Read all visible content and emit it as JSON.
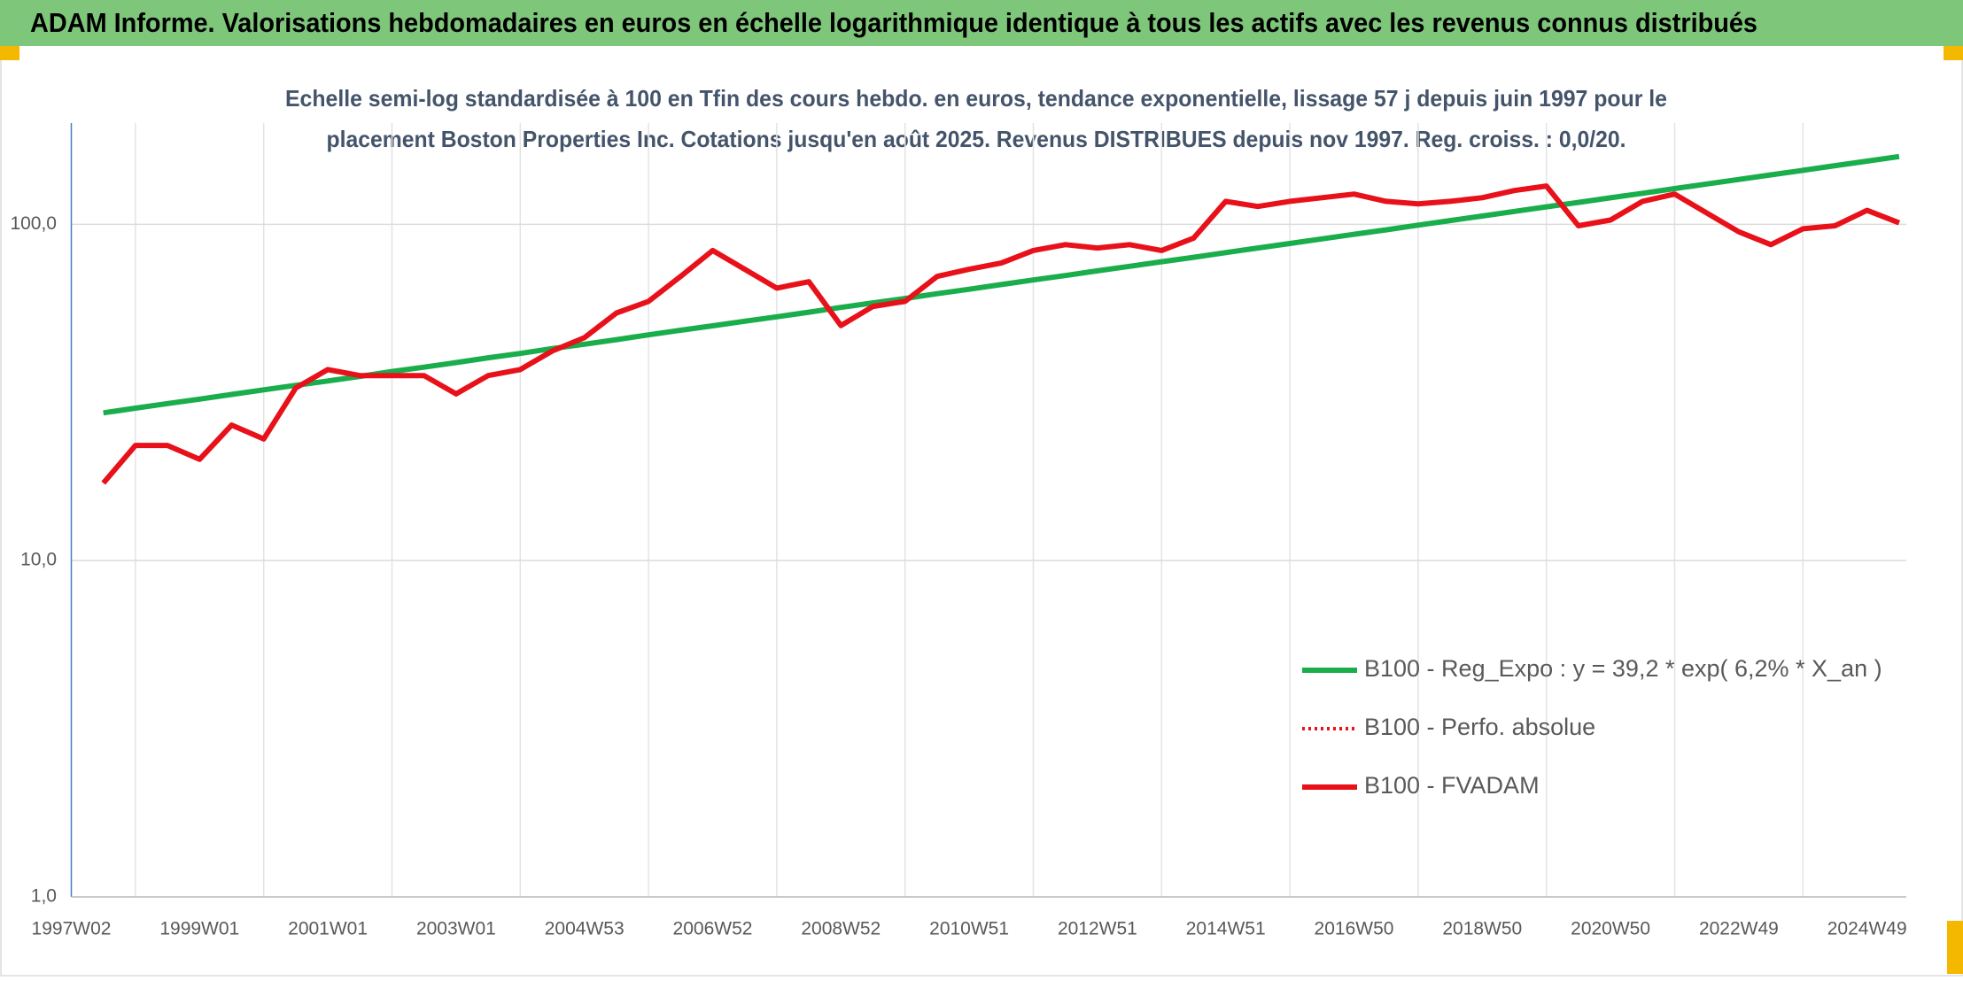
{
  "chart_data": {
    "type": "line",
    "title": "ADAM Informe. Valorisations hebdomadaires en euros en échelle logarithmique identique à tous les actifs avec les revenus connus distribués",
    "subtitle": [
      "Echelle semi-log standardisée à 100 en Tfin des cours hebdo. en euros, tendance exponentielle, lissage 57 j depuis juin 1997 pour le",
      "placement Boston Properties Inc. Cotations jusqu'en août 2025. Revenus DISTRIBUES depuis nov 1997. Reg. croiss. : 0,0/20."
    ],
    "categories": [
      "1997W02",
      null,
      null,
      null,
      "1999W01",
      null,
      null,
      null,
      "2001W01",
      null,
      null,
      null,
      "2003W01",
      null,
      null,
      null,
      "2004W53",
      null,
      null,
      null,
      "2006W52",
      null,
      null,
      null,
      "2008W52",
      null,
      null,
      null,
      "2010W51",
      null,
      null,
      null,
      "2012W51",
      null,
      null,
      null,
      "2014W51",
      null,
      null,
      null,
      "2016W50",
      null,
      null,
      null,
      "2018W50",
      null,
      null,
      null,
      "2020W50",
      null,
      null,
      null,
      "2022W49",
      null,
      null,
      null,
      "2024W49",
      null
    ],
    "series": [
      {
        "name": "B100 - Reg_Expo : y = 39,2 * exp( 6,2% *  X_an )",
        "color": "#1aad4b",
        "style": "solid",
        "values": [
          null,
          27.5,
          28.4,
          29.3,
          30.2,
          31.2,
          32.2,
          33.2,
          34.2,
          35.3,
          36.5,
          37.6,
          38.8,
          40.1,
          41.3,
          42.7,
          44.0,
          45.4,
          46.9,
          48.4,
          49.9,
          51.5,
          53.1,
          54.8,
          56.6,
          58.4,
          60.2,
          62.2,
          64.1,
          66.2,
          68.3,
          70.4,
          72.7,
          75.0,
          77.4,
          79.8,
          82.4,
          85.0,
          87.7,
          90.5,
          93.4,
          96.3,
          99.4,
          102.6,
          105.8,
          109.2,
          112.7,
          116.2,
          119.9,
          123.7,
          127.7,
          131.8,
          135.9,
          140.3,
          144.7,
          149.4,
          154.1,
          159.0
        ]
      },
      {
        "name": "B100 - Perfo. absolue",
        "color": "#e8111a",
        "style": "dotted",
        "values": [
          null,
          17,
          22,
          22,
          20,
          25.3,
          23,
          32.6,
          37,
          35.5,
          35.5,
          35.5,
          31.3,
          35.5,
          37,
          42,
          46,
          54.5,
          59,
          70,
          83.6,
          73.5,
          64.6,
          67.5,
          50,
          57,
          59,
          70,
          73.5,
          76.7,
          83.6,
          87,
          85,
          87,
          83.6,
          91,
          117,
          113,
          117,
          120,
          123,
          117,
          115,
          117,
          120,
          126,
          130,
          99,
          103,
          117,
          123,
          108,
          95,
          87,
          97,
          99,
          110,
          101
        ]
      },
      {
        "name": "B100 - FVADAM",
        "color": "#e8111a",
        "style": "solid",
        "values": [
          null,
          17,
          22,
          22,
          20,
          25.3,
          23,
          32.6,
          37,
          35.5,
          35.5,
          35.5,
          31.3,
          35.5,
          37,
          42,
          46,
          54.5,
          59,
          70,
          83.6,
          73.5,
          64.6,
          67.5,
          50,
          57,
          59,
          70,
          73.5,
          76.7,
          83.6,
          87,
          85,
          87,
          83.6,
          91,
          117,
          113,
          117,
          120,
          123,
          117,
          115,
          117,
          120,
          126,
          130,
          99,
          103,
          117,
          123,
          108,
          95,
          87,
          97,
          99,
          110,
          101
        ]
      }
    ],
    "ylim": [
      1,
      200
    ],
    "yticks": [
      {
        "value": 1,
        "label": "1,0"
      },
      {
        "value": 10,
        "label": "10,0"
      },
      {
        "value": 100,
        "label": "100,0"
      }
    ],
    "log_scale": true,
    "grid": true,
    "legend": "lower right"
  }
}
